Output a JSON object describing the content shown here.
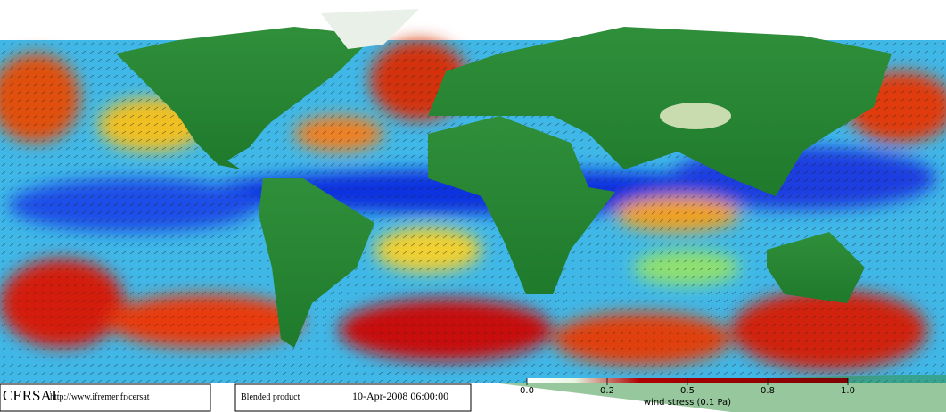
{
  "footer": {
    "logo": "CERSAT",
    "url": "http://www.ifremer.fr/cersat",
    "product": "Blended product",
    "date": "10-Apr-2008 06:00:00"
  },
  "colorbar": {
    "label": "wind stress (0.1 Pa)",
    "ticks": [
      {
        "value": 0,
        "label": "0.0"
      },
      0.2,
      0.5,
      0.8,
      {
        "value": 1,
        "label": "1.0"
      }
    ]
  }
}
